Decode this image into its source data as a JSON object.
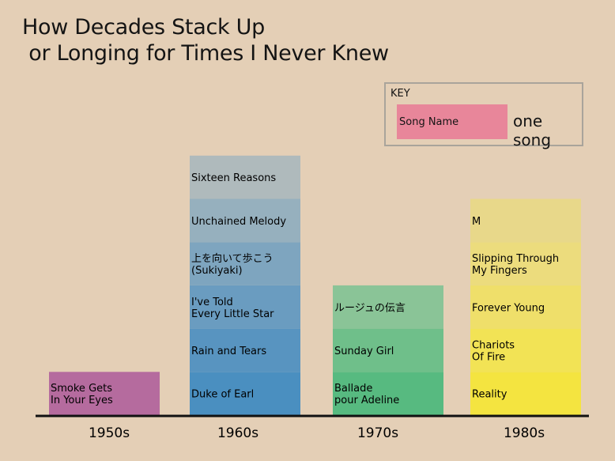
{
  "title": "How Decades Stack Up\n or Longing for Times I Never Knew",
  "key": {
    "title": "KEY",
    "swatch_label": "Song Name",
    "description": "one song",
    "swatch_color": "#e8869a"
  },
  "chart_data": {
    "type": "bar",
    "stacked": true,
    "categories": [
      "1950s",
      "1960s",
      "1970s",
      "1980s"
    ],
    "values": [
      1,
      6,
      3,
      5
    ],
    "ylim": [
      0,
      6
    ],
    "grid": false,
    "legend": "top-right",
    "series": [
      {
        "decade": "1950s",
        "color": "#b56b9e",
        "songs": [
          {
            "label": "Smoke Gets\nIn Your Eyes",
            "color": "#b56b9e"
          }
        ]
      },
      {
        "decade": "1960s",
        "color": "#4a8fc0",
        "songs": [
          {
            "label": "Duke of Earl",
            "color": "#4a8fc0"
          },
          {
            "label": "Rain and Tears",
            "color": "#5894c0"
          },
          {
            "label": "I've Told\nEvery Little Star",
            "color": "#6a9cc0"
          },
          {
            "label": "上を向いて歩こう\n(Sukiyaki)",
            "color": "#7ea5bf"
          },
          {
            "label": "Unchained Melody",
            "color": "#96b0be"
          },
          {
            "label": "Sixteen Reasons",
            "color": "#afbabc"
          }
        ]
      },
      {
        "decade": "1970s",
        "color": "#57ba80",
        "songs": [
          {
            "label": "Ballade\npour Adeline",
            "color": "#57ba80"
          },
          {
            "label": "Sunday Girl",
            "color": "#6fbf8a"
          },
          {
            "label": "ルージュの伝言",
            "color": "#8ac497"
          }
        ]
      },
      {
        "decade": "1980s",
        "color": "#f4e440",
        "songs": [
          {
            "label": "Reality",
            "color": "#f4e440"
          },
          {
            "label": "Chariots\nOf Fire",
            "color": "#f2e355"
          },
          {
            "label": "Forever Young",
            "color": "#efdf6a"
          },
          {
            "label": "Slipping Through\nMy Fingers",
            "color": "#ecdc7d"
          },
          {
            "label": "M",
            "color": "#e8d88a"
          }
        ]
      }
    ]
  }
}
